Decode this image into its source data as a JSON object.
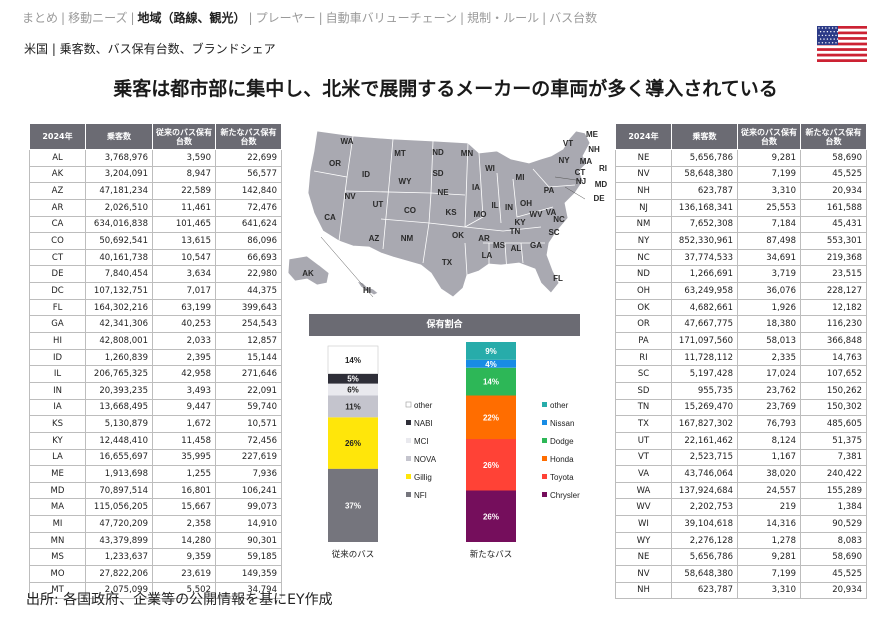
{
  "nav": {
    "items": [
      {
        "label": "まとめ",
        "active": false
      },
      {
        "label": "移動ニーズ",
        "active": false
      },
      {
        "label": "地域（路線、観光）",
        "active": true
      },
      {
        "label": "プレーヤー",
        "active": false
      },
      {
        "label": "自動車バリューチェーン",
        "active": false
      },
      {
        "label": "規制・ルール",
        "active": false
      },
      {
        "label": "バス台数",
        "active": false
      }
    ],
    "separator": "|"
  },
  "subtitle": "米国 | 乗客数、バス保有台数、ブランドシェア",
  "headline": "乗客は都市部に集中し、北米で展開するメーカーの車両が多く導入されている",
  "colors": {
    "table_header": "#6b6b73",
    "map_fill": "#a9a9b1",
    "flag_red": "#cc2233",
    "flag_blue": "#2b3a87"
  },
  "table_headers": {
    "year": "2024年",
    "passengers": "乗客数",
    "conventional": "従来のバス保有台数",
    "new": "新たなバス保有台数"
  },
  "table_left": [
    [
      "AL",
      "3,768,976",
      "3,590",
      "22,699"
    ],
    [
      "AK",
      "3,204,091",
      "8,947",
      "56,577"
    ],
    [
      "AZ",
      "47,181,234",
      "22,589",
      "142,840"
    ],
    [
      "AR",
      "2,026,510",
      "11,461",
      "72,476"
    ],
    [
      "CA",
      "634,016,838",
      "101,465",
      "641,624"
    ],
    [
      "CO",
      "50,692,541",
      "13,615",
      "86,096"
    ],
    [
      "CT",
      "40,161,738",
      "10,547",
      "66,693"
    ],
    [
      "DE",
      "7,840,454",
      "3,634",
      "22,980"
    ],
    [
      "DC",
      "107,132,751",
      "7,017",
      "44,375"
    ],
    [
      "FL",
      "164,302,216",
      "63,199",
      "399,643"
    ],
    [
      "GA",
      "42,341,306",
      "40,253",
      "254,543"
    ],
    [
      "HI",
      "42,808,001",
      "2,033",
      "12,857"
    ],
    [
      "ID",
      "1,260,839",
      "2,395",
      "15,144"
    ],
    [
      "IL",
      "206,765,325",
      "42,958",
      "271,646"
    ],
    [
      "IN",
      "20,393,235",
      "3,493",
      "22,091"
    ],
    [
      "IA",
      "13,668,495",
      "9,447",
      "59,740"
    ],
    [
      "KS",
      "5,130,879",
      "1,672",
      "10,571"
    ],
    [
      "KY",
      "12,448,410",
      "11,458",
      "72,456"
    ],
    [
      "LA",
      "16,655,697",
      "35,995",
      "227,619"
    ],
    [
      "ME",
      "1,913,698",
      "1,255",
      "7,936"
    ],
    [
      "MD",
      "70,897,514",
      "16,801",
      "106,241"
    ],
    [
      "MA",
      "115,056,205",
      "15,667",
      "99,073"
    ],
    [
      "MI",
      "47,720,209",
      "2,358",
      "14,910"
    ],
    [
      "MN",
      "43,379,899",
      "14,280",
      "90,301"
    ],
    [
      "MS",
      "1,233,637",
      "9,359",
      "59,185"
    ],
    [
      "MO",
      "27,822,206",
      "23,619",
      "149,359"
    ],
    [
      "MT",
      "2,075,099",
      "5,502",
      "34,794"
    ]
  ],
  "table_right": [
    [
      "NE",
      "5,656,786",
      "9,281",
      "58,690"
    ],
    [
      "NV",
      "58,648,380",
      "7,199",
      "45,525"
    ],
    [
      "NH",
      "623,787",
      "3,310",
      "20,934"
    ],
    [
      "NJ",
      "136,168,341",
      "25,553",
      "161,588"
    ],
    [
      "NM",
      "7,652,308",
      "7,184",
      "45,431"
    ],
    [
      "NY",
      "852,330,961",
      "87,498",
      "553,301"
    ],
    [
      "NC",
      "37,774,533",
      "34,691",
      "219,368"
    ],
    [
      "ND",
      "1,266,691",
      "3,719",
      "23,515"
    ],
    [
      "OH",
      "63,249,958",
      "36,076",
      "228,127"
    ],
    [
      "OK",
      "4,682,661",
      "1,926",
      "12,182"
    ],
    [
      "OR",
      "47,667,775",
      "18,380",
      "116,230"
    ],
    [
      "PA",
      "171,097,560",
      "58,013",
      "366,848"
    ],
    [
      "RI",
      "11,728,112",
      "2,335",
      "14,763"
    ],
    [
      "SC",
      "5,197,428",
      "17,024",
      "107,652"
    ],
    [
      "SD",
      "955,735",
      "23,762",
      "150,262"
    ],
    [
      "TN",
      "15,269,470",
      "23,769",
      "150,302"
    ],
    [
      "TX",
      "167,827,302",
      "76,793",
      "485,605"
    ],
    [
      "UT",
      "22,161,462",
      "8,124",
      "51,375"
    ],
    [
      "VT",
      "2,523,715",
      "1,167",
      "7,381"
    ],
    [
      "VA",
      "43,746,064",
      "38,020",
      "240,422"
    ],
    [
      "WA",
      "137,924,684",
      "24,557",
      "155,289"
    ],
    [
      "WV",
      "2,202,753",
      "219",
      "1,384"
    ],
    [
      "WI",
      "39,104,618",
      "14,316",
      "90,529"
    ],
    [
      "WY",
      "2,276,128",
      "1,278",
      "8,083"
    ],
    [
      "NE",
      "5,656,786",
      "9,281",
      "58,690"
    ],
    [
      "NV",
      "58,648,380",
      "7,199",
      "45,525"
    ],
    [
      "NH",
      "623,787",
      "3,310",
      "20,934"
    ]
  ],
  "map_labels": [
    "WA",
    "MT",
    "ND",
    "MN",
    "OR",
    "ID",
    "SD",
    "WI",
    "MI",
    "WY",
    "NE",
    "IA",
    "IL",
    "IN",
    "OH",
    "PA",
    "NY",
    "VT",
    "ME",
    "NH",
    "MA",
    "RI",
    "CT",
    "NJ",
    "MD",
    "DE",
    "NV",
    "UT",
    "CO",
    "KS",
    "MO",
    "KY",
    "WV",
    "VA",
    "NC",
    "CA",
    "TN",
    "SC",
    "AZ",
    "NM",
    "OK",
    "AR",
    "MS",
    "AL",
    "GA",
    "TX",
    "LA",
    "FL",
    "AK",
    "HI"
  ],
  "chart_data": {
    "type": "bar",
    "title": "保有割合",
    "categories": [
      "従来のバス",
      "新たなバス"
    ],
    "stacks": [
      {
        "category": "従来のバス",
        "segments": [
          {
            "name": "NFI",
            "value": 37,
            "label": "37%",
            "color": "#75757d"
          },
          {
            "name": "Gillig",
            "value": 26,
            "label": "26%",
            "color": "#ffe60a"
          },
          {
            "name": "NOVA",
            "value": 11,
            "label": "11%",
            "color": "#c4c4cd"
          },
          {
            "name": "MCI",
            "value": 6,
            "label": "6%",
            "color": "#e9e9ee"
          },
          {
            "name": "NABI",
            "value": 5,
            "label": "5%",
            "color": "#2e2e38"
          },
          {
            "name": "other",
            "value": 14,
            "label": "14%",
            "color": "#ffffff"
          }
        ]
      },
      {
        "category": "新たなバス",
        "segments": [
          {
            "name": "Chrysler",
            "value": 26,
            "label": "26%",
            "color": "#750e5c"
          },
          {
            "name": "Toyota",
            "value": 26,
            "label": "26%",
            "color": "#ff4236"
          },
          {
            "name": "Honda",
            "value": 22,
            "label": "22%",
            "color": "#ff6d00"
          },
          {
            "name": "Dodge",
            "value": 14,
            "label": "14%",
            "color": "#2db757"
          },
          {
            "name": "Nissan",
            "value": 4,
            "label": "4%",
            "color": "#188ce5"
          },
          {
            "name": "other",
            "value": 9,
            "label": "9%",
            "color": "#27acaa"
          }
        ]
      }
    ],
    "legends": [
      [
        "other",
        "NABI",
        "MCI",
        "NOVA",
        "Gillig",
        "NFI"
      ],
      [
        "other",
        "Nissan",
        "Dodge",
        "Honda",
        "Toyota",
        "Chrysler"
      ]
    ],
    "ylim": [
      0,
      100
    ]
  },
  "source": "出所: 各国政府、企業等の公開情報を基にEY作成"
}
